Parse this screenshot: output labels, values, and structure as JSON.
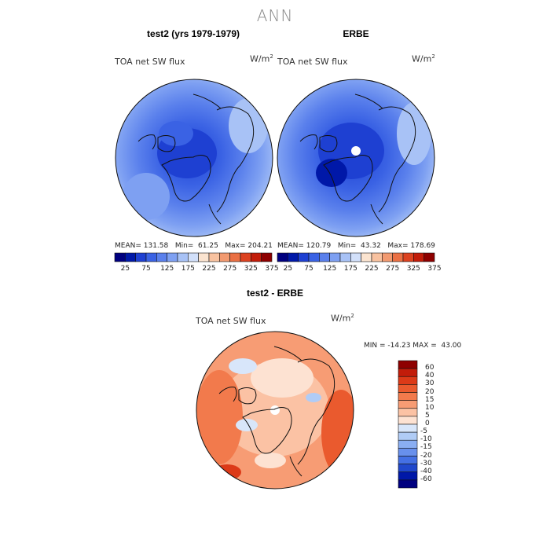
{
  "title": "ANN",
  "panels": [
    {
      "title": "test2 (yrs 1979-1979)",
      "variable": "TOA net SW flux",
      "unit_base": "W/m",
      "unit_sup": "2",
      "stats": "MEAN= 131.58   Min=  61.25   Max= 204.21"
    },
    {
      "title": "ERBE",
      "variable": "TOA net SW flux",
      "unit_base": "W/m",
      "unit_sup": "2",
      "stats": "MEAN= 120.79   Min=  43.32   Max= 178.69"
    }
  ],
  "colorbar_top": {
    "ticks": [
      "25",
      "75",
      "125",
      "175",
      "225",
      "275",
      "325",
      "375"
    ],
    "colors": [
      "#00007f",
      "#0018a8",
      "#1e40d2",
      "#3a62e4",
      "#5a80ec",
      "#7ea0f2",
      "#a8c2f6",
      "#d2e0fa",
      "#fbe4d0",
      "#f8c2a0",
      "#f29a70",
      "#ea7044",
      "#dc4220",
      "#c21c0a",
      "#8e0000"
    ]
  },
  "diff_panel": {
    "title": "test2 - ERBE",
    "variable": "TOA net SW flux",
    "unit_base": "W/m",
    "unit_sup": "2",
    "stats": "MIN = -14.23 MAX =  43.00"
  },
  "colorbar_diff": {
    "labels": [
      "60",
      "40",
      "30",
      "20",
      "15",
      "10",
      "5",
      "0",
      "-5",
      "-10",
      "-15",
      "-20",
      "-30",
      "-40",
      "-60"
    ],
    "colors": [
      "#8e0000",
      "#c21c0a",
      "#dc3a18",
      "#ea5a2e",
      "#f27a4c",
      "#f79c74",
      "#fbc2a4",
      "#fde2d2",
      "#d8e6fa",
      "#b0ccf6",
      "#8aaef2",
      "#6890ec",
      "#4470e4",
      "#2048cc",
      "#0018a8",
      "#00007f"
    ]
  }
}
